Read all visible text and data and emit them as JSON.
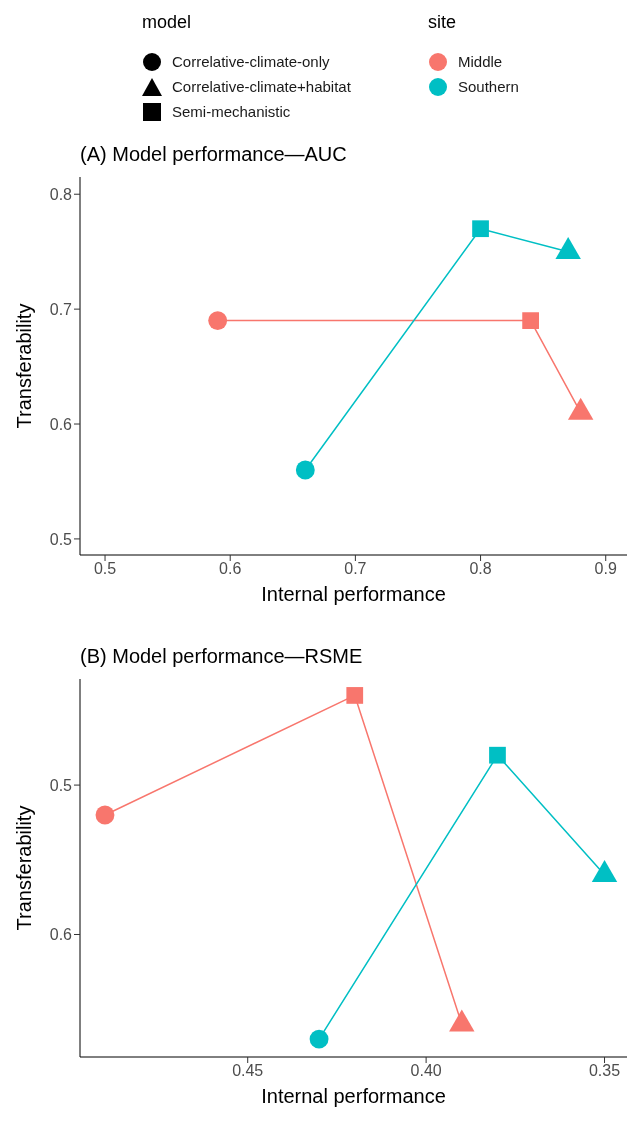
{
  "chart_data": [
    {
      "type": "line",
      "title": "(A) Model performance—AUC",
      "xlabel": "Internal performance",
      "ylabel": "Transferability",
      "legend_title": "site",
      "annotations": [
        "model",
        "Correlative-climate-only",
        "Correlative-climate+habitat",
        "Semi-mechanistic"
      ],
      "legend": "top",
      "grid": false,
      "xlim": [
        0.48,
        0.917
      ],
      "ylim": [
        0.486,
        0.815
      ],
      "xticks": [
        0.5,
        0.6,
        0.7,
        0.8,
        0.9
      ],
      "yticks": [
        0.5,
        0.6,
        0.7,
        0.8
      ],
      "series": [
        {
          "name": "Middle",
          "marker": "none",
          "color": "#f8766d",
          "x": [
            0.59,
            0.84,
            0.88
          ],
          "values": [
            0.69,
            0.69,
            0.61
          ]
        },
        {
          "name": "Southern",
          "marker": "none",
          "color": "#00bfc4",
          "x": [
            0.66,
            0.8,
            0.87
          ],
          "values": [
            0.56,
            0.77,
            0.75
          ]
        },
        {
          "type": "scatter",
          "marker": "circle",
          "x": [
            0.59,
            0.66
          ],
          "values": [
            0.69,
            0.56
          ],
          "colors": [
            "#f8766d",
            "#00bfc4"
          ]
        },
        {
          "type": "scatter",
          "marker": "triangle",
          "x": [
            0.88,
            0.87
          ],
          "values": [
            0.61,
            0.75
          ],
          "colors": [
            "#f8766d",
            "#00bfc4"
          ]
        },
        {
          "type": "scatter",
          "marker": "square",
          "x": [
            0.84,
            0.8
          ],
          "values": [
            0.69,
            0.77
          ],
          "colors": [
            "#f8766d",
            "#00bfc4"
          ]
        }
      ]
    },
    {
      "type": "line",
      "title": "(B) Model performance—RSME",
      "xlabel": "Internal performance",
      "ylabel": "Transferability",
      "grid": false,
      "xlim": [
        0.497,
        0.3437
      ],
      "ylim": [
        0.682,
        0.429
      ],
      "xticks": [
        0.45,
        {
          "value": 0.4,
          "label": "0.40"
        },
        0.35
      ],
      "yticks": [
        0.5,
        0.6
      ],
      "series": [
        {
          "marker": "none",
          "color": "#f8766d",
          "x": [
            0.49,
            0.42,
            0.39
          ],
          "values": [
            0.52,
            0.44,
            0.66
          ]
        },
        {
          "marker": "none",
          "color": "#00bfc4",
          "x": [
            0.43,
            0.38,
            0.35
          ],
          "values": [
            0.67,
            0.48,
            0.56
          ]
        },
        {
          "type": "scatter",
          "marker": "circle",
          "x": [
            0.49,
            0.43
          ],
          "values": [
            0.52,
            0.67
          ],
          "colors": [
            "#f8766d",
            "#00bfc4"
          ]
        },
        {
          "type": "scatter",
          "marker": "triangle",
          "x": [
            0.39,
            0.35
          ],
          "values": [
            0.66,
            0.56
          ],
          "colors": [
            "#f8766d",
            "#00bfc4"
          ]
        },
        {
          "type": "scatter",
          "marker": "square",
          "x": [
            0.42,
            0.38
          ],
          "values": [
            0.44,
            0.48
          ],
          "colors": [
            "#f8766d",
            "#00bfc4"
          ]
        }
      ]
    }
  ]
}
